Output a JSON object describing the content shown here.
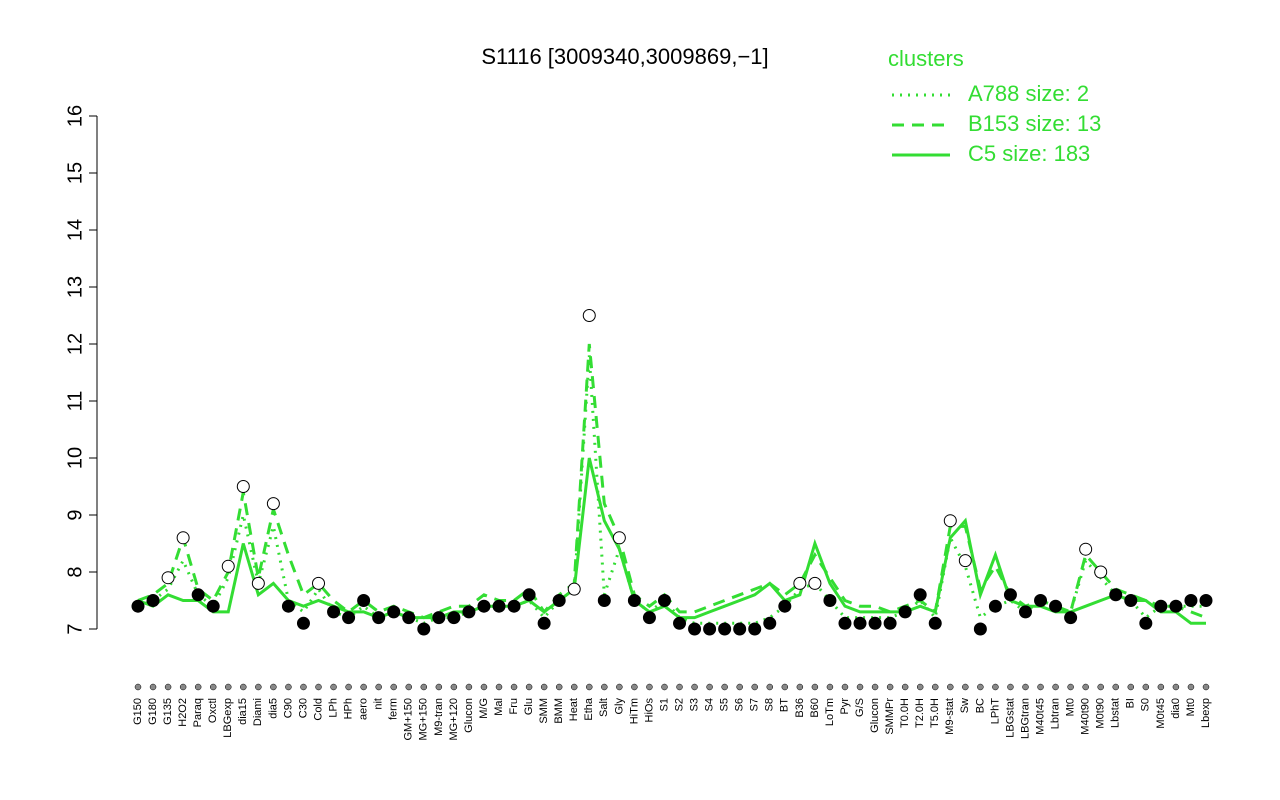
{
  "chart_data": {
    "type": "line",
    "title": "S1116 [3009340,3009869,−1]",
    "legend_title": "clusters",
    "legend_color": "#33dd33",
    "ylim": [
      7,
      16
    ],
    "yticks": [
      7,
      8,
      9,
      10,
      11,
      12,
      13,
      14,
      15,
      16
    ],
    "categories": [
      "G150",
      "G180",
      "G135",
      "H2O2",
      "Paraq",
      "Oxctl",
      "LBGexp",
      "dia15",
      "Diami",
      "dia5",
      "C90",
      "C30",
      "Cold",
      "LPh",
      "HPh",
      "aero",
      "nit",
      "ferm",
      "GM+150",
      "MG+150",
      "M9-tran",
      "MG+120",
      "Glucon",
      "M/G",
      "Mal",
      "Fru",
      "Glu",
      "SMM",
      "BMM",
      "Heat",
      "Etha",
      "Salt",
      "Gly",
      "HiTm",
      "HiOs",
      "S1",
      "S2",
      "S3",
      "S4",
      "S5",
      "S6",
      "S7",
      "S8",
      "BT",
      "B36",
      "B60",
      "LoTm",
      "Pyr",
      "G/S",
      "Glucon",
      "SMMPr",
      "T0.0H",
      "T2.0H",
      "T5.0H",
      "M9-stat",
      "Sw",
      "BC",
      "LPhT",
      "LBGstat",
      "LBGtran",
      "M40t45",
      "Lbtran",
      "Mt0",
      "M40t90",
      "M0t90",
      "Lbstat",
      "BI",
      "S0",
      "M0t45",
      "dia0",
      "Mt0",
      "Lbexp"
    ],
    "values": [
      7.4,
      7.5,
      7.9,
      8.6,
      7.6,
      7.4,
      8.1,
      9.5,
      7.8,
      9.2,
      7.4,
      7.1,
      7.8,
      7.3,
      7.2,
      7.5,
      7.2,
      7.3,
      7.2,
      7.0,
      7.2,
      7.2,
      7.3,
      7.4,
      7.4,
      7.4,
      7.6,
      7.1,
      7.5,
      7.7,
      12.5,
      7.5,
      8.6,
      7.5,
      7.2,
      7.5,
      7.1,
      7.0,
      7.0,
      7.0,
      7.0,
      7.0,
      7.1,
      7.4,
      7.8,
      7.8,
      7.5,
      7.1,
      7.1,
      7.1,
      7.1,
      7.3,
      7.6,
      7.1,
      8.9,
      8.2,
      7.0,
      7.4,
      7.6,
      7.3,
      7.5,
      7.4,
      7.2,
      8.4,
      8.0,
      7.6,
      7.5,
      7.1,
      7.4,
      7.4,
      7.5,
      7.5
    ],
    "series": [
      {
        "name": "A788 size: 2",
        "color": "#33dd33",
        "style": "dotted",
        "values": [
          7.4,
          7.5,
          7.7,
          8.2,
          7.6,
          7.4,
          7.9,
          9.0,
          7.8,
          8.8,
          7.5,
          7.3,
          7.7,
          7.3,
          7.2,
          7.4,
          7.2,
          7.3,
          7.2,
          7.1,
          7.2,
          7.2,
          7.3,
          7.4,
          7.4,
          7.4,
          7.5,
          7.2,
          7.5,
          7.7,
          11.8,
          7.6,
          8.4,
          7.5,
          7.3,
          7.5,
          7.2,
          7.1,
          7.1,
          7.1,
          7.1,
          7.1,
          7.2,
          7.4,
          7.7,
          7.8,
          7.5,
          7.2,
          7.2,
          7.2,
          7.2,
          7.3,
          7.5,
          7.2,
          8.6,
          8.1,
          7.2,
          7.4,
          7.5,
          7.3,
          7.5,
          7.4,
          7.3,
          8.2,
          7.9,
          7.6,
          7.5,
          7.2,
          7.4,
          7.4,
          7.4,
          7.4
        ]
      },
      {
        "name": "B153 size: 13",
        "color": "#33dd33",
        "style": "dashed",
        "values": [
          7.5,
          7.6,
          7.8,
          8.6,
          7.7,
          7.5,
          8.0,
          9.4,
          7.9,
          9.1,
          8.3,
          7.6,
          7.8,
          7.5,
          7.3,
          7.5,
          7.3,
          7.4,
          7.3,
          7.2,
          7.3,
          7.4,
          7.4,
          7.6,
          7.5,
          7.5,
          7.7,
          7.3,
          7.6,
          7.8,
          12.0,
          9.2,
          8.6,
          7.6,
          7.4,
          7.6,
          7.3,
          7.3,
          7.4,
          7.5,
          7.6,
          7.7,
          7.8,
          7.6,
          7.8,
          8.3,
          7.9,
          7.5,
          7.4,
          7.4,
          7.3,
          7.4,
          7.5,
          7.3,
          8.8,
          8.8,
          7.7,
          8.1,
          7.6,
          7.4,
          7.5,
          7.4,
          7.3,
          8.3,
          8.0,
          7.7,
          7.6,
          7.5,
          7.4,
          7.4,
          7.3,
          7.2
        ]
      },
      {
        "name": "C5 size: 183",
        "color": "#33dd33",
        "style": "solid",
        "values": [
          7.5,
          7.4,
          7.6,
          7.5,
          7.5,
          7.3,
          7.3,
          8.5,
          7.6,
          7.8,
          7.5,
          7.4,
          7.5,
          7.4,
          7.3,
          7.3,
          7.2,
          7.3,
          7.2,
          7.2,
          7.2,
          7.3,
          7.3,
          7.4,
          7.4,
          7.4,
          7.5,
          7.3,
          7.5,
          7.7,
          10.0,
          8.9,
          8.4,
          7.5,
          7.3,
          7.4,
          7.2,
          7.2,
          7.3,
          7.4,
          7.5,
          7.6,
          7.8,
          7.5,
          7.6,
          8.5,
          7.8,
          7.4,
          7.3,
          7.3,
          7.3,
          7.3,
          7.4,
          7.3,
          8.6,
          8.9,
          7.6,
          8.3,
          7.5,
          7.4,
          7.4,
          7.3,
          7.3,
          7.4,
          7.5,
          7.6,
          7.5,
          7.5,
          7.3,
          7.3,
          7.1,
          7.1
        ]
      }
    ]
  }
}
